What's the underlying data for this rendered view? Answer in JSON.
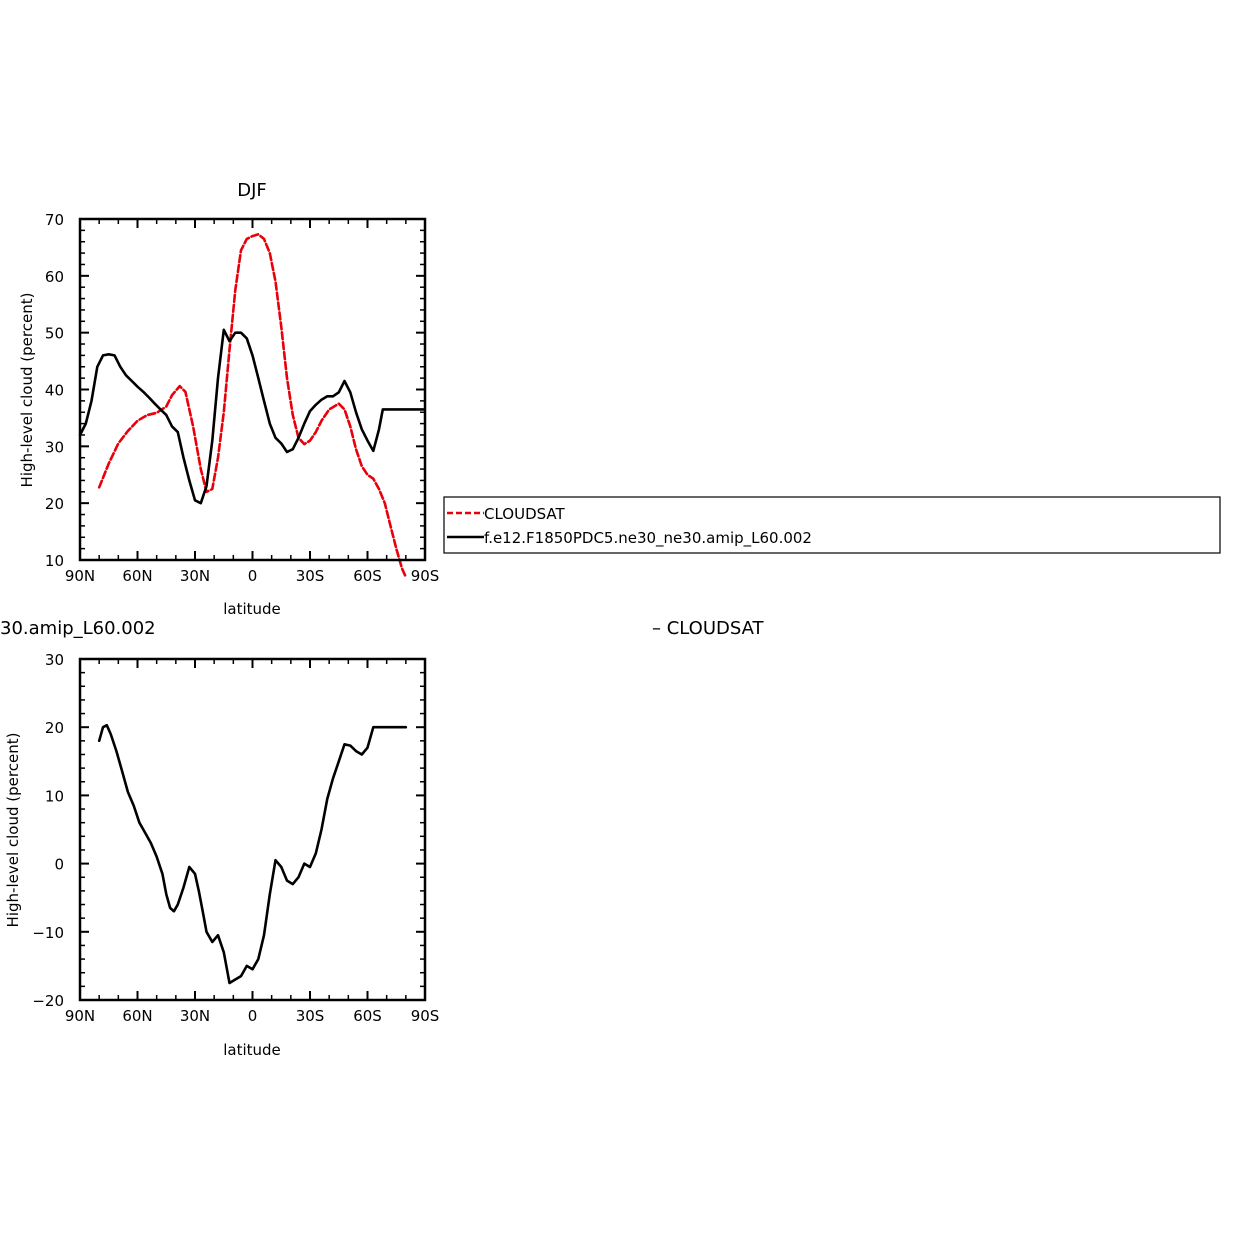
{
  "chart_data": [
    {
      "type": "line",
      "title": "DJF",
      "xlabel": "latitude",
      "ylabel": "High-level cloud (percent)",
      "xlim": [
        90,
        -90
      ],
      "ylim": [
        10,
        70
      ],
      "xticks": [
        90,
        60,
        30,
        0,
        -30,
        -60,
        -90
      ],
      "xtick_labels": [
        "90N",
        "60N",
        "30N",
        "0",
        "30S",
        "60S",
        "90S"
      ],
      "yticks": [
        10,
        20,
        30,
        40,
        50,
        60,
        70
      ],
      "ytick_labels": [
        "10",
        "20",
        "30",
        "40",
        "50",
        "60",
        "70"
      ],
      "grid": false,
      "legend_placement": "right",
      "series": [
        {
          "name": "CLOUDSAT",
          "color": "#e8000b",
          "dash": "dashed",
          "x": [
            80,
            75,
            70,
            65,
            60,
            55,
            50,
            45,
            42,
            38,
            35,
            31,
            27,
            24,
            21,
            18,
            15,
            12,
            9,
            6,
            3,
            0,
            -3,
            -6,
            -9,
            -12,
            -15,
            -18,
            -21,
            -24,
            -27,
            -30,
            -33,
            -36,
            -40,
            -45,
            -48,
            -51,
            -54,
            -57,
            -60,
            -63,
            -66,
            -69,
            -72,
            -75,
            -78,
            -80
          ],
          "y": [
            22.8,
            27.0,
            30.5,
            32.7,
            34.5,
            35.5,
            35.9,
            37.0,
            39.0,
            40.6,
            39.6,
            33.5,
            26.0,
            22.0,
            22.5,
            28.0,
            36.0,
            47.0,
            57.5,
            64.5,
            66.5,
            67.0,
            67.3,
            66.5,
            64.0,
            59.0,
            51.0,
            42.0,
            35.5,
            31.5,
            30.4,
            31.0,
            32.5,
            34.5,
            36.5,
            37.5,
            36.5,
            33.5,
            29.5,
            26.5,
            25.0,
            24.3,
            22.5,
            20.0,
            16.0,
            12.0,
            8.5,
            7.0
          ]
        },
        {
          "name": "f.e12.F1850PDC5.ne30_ne30.amip_L60.002",
          "color": "#000000",
          "dash": "solid",
          "x": [
            90,
            87,
            84,
            81,
            78,
            75,
            72,
            69,
            66,
            63,
            60,
            57,
            54,
            51,
            48,
            45,
            42,
            39,
            36,
            33,
            30,
            27,
            24,
            21,
            18,
            15,
            12,
            9,
            6,
            3,
            0,
            -3,
            -6,
            -9,
            -12,
            -15,
            -18,
            -21,
            -24,
            -27,
            -30,
            -33,
            -36,
            -39,
            -42,
            -45,
            -48,
            -51,
            -54,
            -57,
            -60,
            -63,
            -66,
            -68,
            -71,
            -74,
            -77,
            -80,
            -83,
            -86,
            -89
          ],
          "y": [
            32.0,
            34.0,
            38.0,
            44.0,
            46.0,
            46.2,
            46.0,
            44.0,
            42.5,
            41.5,
            40.5,
            39.6,
            38.6,
            37.5,
            36.5,
            35.5,
            33.5,
            32.5,
            28.0,
            24.0,
            20.5,
            20.0,
            23.0,
            31.0,
            42.0,
            50.5,
            48.5,
            50.0,
            50.0,
            49.0,
            46.0,
            42.0,
            38.0,
            34.0,
            31.5,
            30.5,
            29.0,
            29.5,
            31.5,
            34.0,
            36.2,
            37.3,
            38.2,
            38.8,
            38.8,
            39.5,
            41.5,
            39.5,
            36.0,
            33.0,
            31.0,
            29.2,
            33.0,
            36.5,
            36.5,
            36.5,
            36.5,
            36.5,
            36.5,
            36.5,
            36.5
          ]
        }
      ]
    },
    {
      "type": "line",
      "title": "30.amip_L60.002",
      "title_right": "– CLOUDSAT",
      "xlabel": "latitude",
      "ylabel": "High-level cloud (percent)",
      "xlim": [
        90,
        -90
      ],
      "ylim": [
        -20,
        30
      ],
      "xticks": [
        90,
        60,
        30,
        0,
        -30,
        -60,
        -90
      ],
      "xtick_labels": [
        "90N",
        "60N",
        "30N",
        "0",
        "30S",
        "60S",
        "90S"
      ],
      "yticks": [
        -20,
        -10,
        0,
        10,
        20,
        30
      ],
      "ytick_labels": [
        "−20",
        "−10",
        "0",
        "10",
        "20",
        "30"
      ],
      "grid": false,
      "series": [
        {
          "color": "#000000",
          "dash": "solid",
          "x": [
            80,
            78,
            76,
            74,
            71,
            68,
            65,
            62,
            59,
            56,
            53,
            50,
            47,
            45,
            43,
            41,
            39,
            36,
            33,
            30,
            28,
            26,
            24,
            21,
            18,
            15,
            12,
            9,
            6,
            3,
            0,
            -3,
            -6,
            -9,
            -12,
            -15,
            -18,
            -21,
            -24,
            -27,
            -30,
            -33,
            -36,
            -39,
            -42,
            -45,
            -48,
            -51,
            -54,
            -57,
            -60,
            -63,
            -66,
            -69,
            -72,
            -75,
            -77,
            -80
          ],
          "y": [
            18.0,
            20.0,
            20.3,
            19.0,
            16.5,
            13.5,
            10.5,
            8.5,
            6.0,
            4.5,
            3.0,
            1.0,
            -1.5,
            -4.5,
            -6.5,
            -7.0,
            -6.0,
            -3.5,
            -0.5,
            -1.5,
            -4.0,
            -7.0,
            -10.0,
            -11.5,
            -10.5,
            -13.0,
            -17.5,
            -17.0,
            -16.5,
            -15.0,
            -15.5,
            -14.0,
            -10.5,
            -4.5,
            0.5,
            -0.5,
            -2.5,
            -3.0,
            -2.0,
            0.0,
            -0.5,
            1.5,
            5.0,
            9.5,
            12.5,
            15.0,
            17.5,
            17.3,
            16.5,
            16.0,
            17.0,
            20.0,
            20.0,
            20.0,
            20.0,
            20.0,
            20.0,
            20.0
          ]
        }
      ]
    }
  ]
}
